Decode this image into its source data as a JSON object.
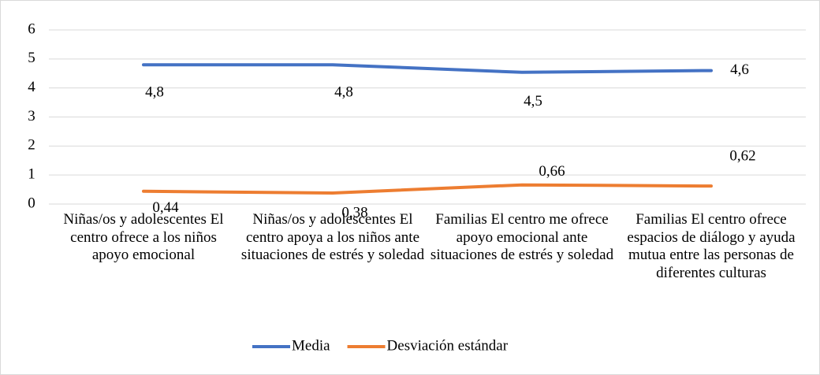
{
  "chart_data": {
    "type": "line",
    "categories": [
      "Niñas/os y adolescentes El centro ofrece a los niños apoyo emocional",
      "Niñas/os y adolescentes El centro apoya a los niños ante situaciones de estrés y soledad",
      "Familias El centro me ofrece apoyo emocional ante situaciones de estrés y soledad",
      "Familias El centro ofrece espacios de diálogo y ayuda mutua entre las personas de diferentes culturas"
    ],
    "series": [
      {
        "name": "Media",
        "color": "#4472c4",
        "values": [
          4.8,
          4.8,
          4.54,
          4.6
        ],
        "value_labels": [
          "4,8",
          "4,8",
          "4,5",
          "4,6"
        ]
      },
      {
        "name": "Desviación estándar",
        "color": "#ed7d31",
        "values": [
          0.44,
          0.38,
          0.66,
          0.62
        ],
        "value_labels": [
          "0,44",
          "0,38",
          "0,66",
          "0,62"
        ]
      }
    ],
    "ylim": [
      0,
      6
    ],
    "yticks": [
      0,
      1,
      2,
      3,
      4,
      5,
      6
    ],
    "grid": true,
    "legend": "bottom"
  }
}
